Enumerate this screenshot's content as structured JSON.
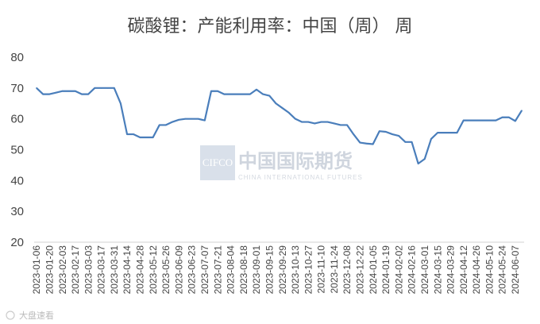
{
  "chart_data": {
    "type": "line",
    "title": "碳酸锂：产能利用率：中国（周） 周",
    "ylim": [
      20,
      80
    ],
    "yticks": [
      20,
      30,
      40,
      50,
      60,
      70,
      80
    ],
    "grid": false,
    "line_color": "#4a7ebb",
    "x_tick_labels": [
      "2023-01-06",
      "2023-01-20",
      "2023-02-03",
      "2023-02-17",
      "2023-03-03",
      "2023-03-17",
      "2023-03-31",
      "2023-04-14",
      "2023-04-28",
      "2023-05-12",
      "2023-05-26",
      "2023-06-09",
      "2023-06-23",
      "2023-07-07",
      "2023-07-21",
      "2023-08-04",
      "2023-08-18",
      "2023-09-01",
      "2023-09-15",
      "2023-09-29",
      "2023-10-13",
      "2023-10-27",
      "2023-11-10",
      "2023-11-24",
      "2023-12-08",
      "2023-12-22",
      "2024-01-05",
      "2024-01-19",
      "2024-02-02",
      "2024-02-16",
      "2024-03-01",
      "2024-03-15",
      "2024-03-29",
      "2024-04-12",
      "2024-04-26",
      "2024-05-10",
      "2024-05-24",
      "2024-06-07"
    ],
    "x": [
      "2023-01-06",
      "2023-01-13",
      "2023-01-20",
      "2023-01-27",
      "2023-02-03",
      "2023-02-10",
      "2023-02-17",
      "2023-02-24",
      "2023-03-03",
      "2023-03-10",
      "2023-03-17",
      "2023-03-24",
      "2023-03-31",
      "2023-04-07",
      "2023-04-14",
      "2023-04-21",
      "2023-04-28",
      "2023-05-05",
      "2023-05-12",
      "2023-05-19",
      "2023-05-26",
      "2023-06-02",
      "2023-06-09",
      "2023-06-16",
      "2023-06-23",
      "2023-06-30",
      "2023-07-07",
      "2023-07-14",
      "2023-07-21",
      "2023-07-28",
      "2023-08-04",
      "2023-08-11",
      "2023-08-18",
      "2023-08-25",
      "2023-09-01",
      "2023-09-08",
      "2023-09-15",
      "2023-09-22",
      "2023-09-29",
      "2023-10-06",
      "2023-10-13",
      "2023-10-20",
      "2023-10-27",
      "2023-11-03",
      "2023-11-10",
      "2023-11-17",
      "2023-11-24",
      "2023-12-01",
      "2023-12-08",
      "2023-12-15",
      "2023-12-22",
      "2023-12-29",
      "2024-01-05",
      "2024-01-12",
      "2024-01-19",
      "2024-01-26",
      "2024-02-02",
      "2024-02-09",
      "2024-02-16",
      "2024-02-23",
      "2024-03-01",
      "2024-03-08",
      "2024-03-15",
      "2024-03-22",
      "2024-03-29",
      "2024-04-05",
      "2024-04-12",
      "2024-04-19",
      "2024-04-26",
      "2024-05-03",
      "2024-05-10",
      "2024-05-17",
      "2024-05-24",
      "2024-05-31",
      "2024-06-07",
      "2024-06-14"
    ],
    "series": [
      {
        "values": [
          70,
          68,
          68,
          68.5,
          69,
          69,
          69,
          68,
          68,
          70,
          70,
          70,
          70,
          65,
          55,
          55,
          54,
          54,
          54,
          58,
          58,
          59,
          59.7,
          60,
          60,
          60,
          59.5,
          69,
          69,
          68,
          68,
          68,
          68,
          68,
          69.5,
          68,
          67.5,
          65,
          63.5,
          62,
          60,
          59,
          59,
          58.5,
          59,
          59,
          58.5,
          58,
          58,
          55,
          52.3,
          52,
          51.8,
          56,
          55.8,
          55,
          54.5,
          52.5,
          52.5,
          45.5,
          47,
          53.5,
          55.5,
          55.5,
          55.5,
          55.5,
          59.5,
          59.5,
          59.5,
          59.5,
          59.5,
          59.5,
          60.5,
          60.5,
          59.3,
          62.7
        ]
      }
    ]
  },
  "watermark": {
    "box_text": "CIFCO",
    "name": "中国国际期货",
    "subtitle": "CHINA INTERNATIONAL FUTURES"
  },
  "source_mark": "大盘速看"
}
